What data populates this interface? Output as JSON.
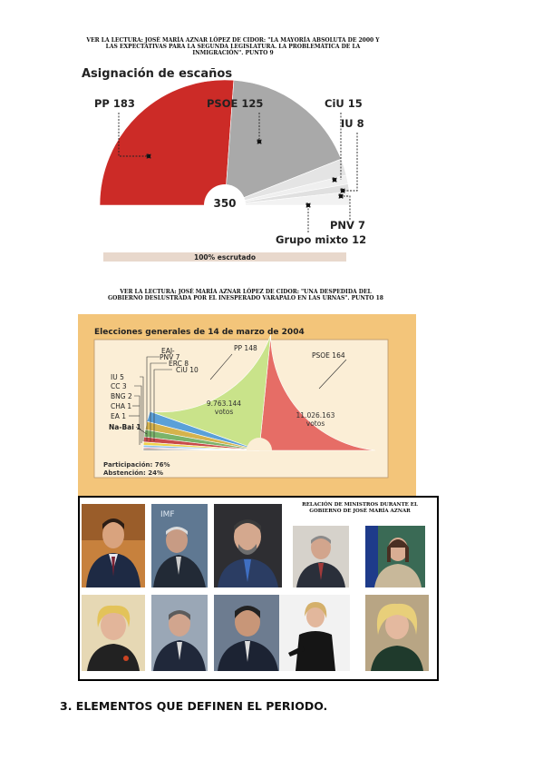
{
  "chart1": {
    "caption": "VER LA LECTURA: JOSÉ MARÍA AZNAR LÓPEZ DE CIDOR: \"LA MAYORÍA ABSOLUTA DE 2000 Y LAS EXPECTATIVAS PARA LA SEGUNDA LEGISLATURA. LA PROBLEMÁTICA DE LA INMIGRACIÓN\". PUNTO 9",
    "footer": "100% escrutado",
    "colors": {
      "PP": "#cc2b27",
      "PSOE": "#a9a9a9",
      "others": "#e4e4e4",
      "line": "#222222"
    }
  },
  "chart2": {
    "caption": "VER LA LECTURA: JOSÉ MARÍA AZNAR LÓPEZ DE CIDOR: \"UNA DESPEDIDA DEL GOBIERNO DESLUSTRADA POR EL INESPERADO VARAPALO EN LAS URNAS\". PUNTO 18",
    "pp_votes": "9.763.144",
    "psoe_votes": "11.026.163",
    "votes_word": "votos",
    "participation": "Participación: 76%",
    "abstention": "Abstención: 24%",
    "colors": {
      "panel": "#f3c57a",
      "inner": "#fbeed6",
      "PP": "#c9e38a",
      "PSOE": "#e66d66"
    }
  },
  "chart_data": [
    {
      "type": "pie",
      "title": "Asignación de escaños",
      "center_label": "350",
      "labels": [
        "PP",
        "PSOE",
        "CiU",
        "IU",
        "PNV",
        "Grupo mixto"
      ],
      "display_labels": [
        "PP 183",
        "PSOE 125",
        "CiU 15",
        "IU 8",
        "PNV 7",
        "Grupo mixto 12"
      ],
      "values": [
        183,
        125,
        15,
        8,
        7,
        12
      ],
      "shape": "semicircle"
    },
    {
      "type": "pie",
      "title": "Elecciones generales de 14 de marzo de 2004",
      "labels": [
        "PSOE",
        "PP",
        "CiU",
        "ERC",
        "PNV",
        "EAJ",
        "IU",
        "CC",
        "BNG",
        "CHA",
        "EA",
        "Na-Bai"
      ],
      "display_labels": [
        "PSOE 164",
        "PP 148",
        "CiU 10",
        "ERC 8",
        "PNV 7",
        "EAJ-",
        "IU 5",
        "CC 3",
        "BNG 2",
        "CHA 1",
        "EA 1",
        "Na-Bai 1"
      ],
      "values": [
        164,
        148,
        10,
        8,
        7,
        0,
        5,
        3,
        2,
        1,
        1,
        1
      ],
      "shape": "semicircle"
    }
  ],
  "photos": {
    "note": "RELACIÓN DE MINISTROS DURANTE EL GOBIERNO DE JOSÉ MARÍA AZNAR",
    "banner_text": "IMF"
  },
  "section_heading": "3. ELEMENTOS QUE DEFINEN EL PERIODO."
}
